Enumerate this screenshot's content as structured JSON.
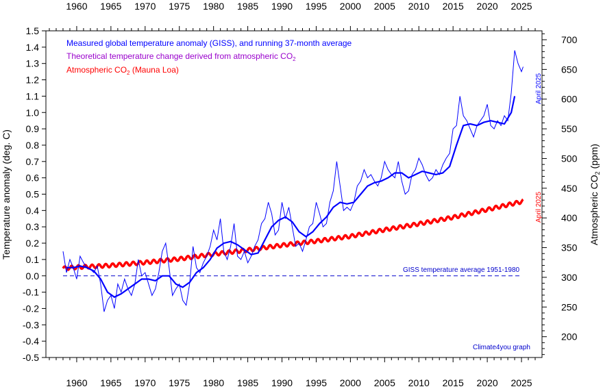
{
  "chart_data": {
    "type": "line",
    "xlabel": "",
    "ylabel": "Temperature anomaly (deg. C)",
    "ylabel_right": "Atmospheric CO",
    "ylabel_right_sub": "2",
    "ylabel_right_unit": " (ppm)",
    "xlim": [
      1955.5,
      2028.0
    ],
    "ylim": [
      -0.5,
      1.5
    ],
    "ylim_right": [
      165,
      715
    ],
    "x_ticks": [
      1960,
      1965,
      1970,
      1975,
      1980,
      1985,
      1990,
      1995,
      2000,
      2005,
      2010,
      2015,
      2020,
      2025
    ],
    "y_ticks": [
      "-0.5",
      "-0.4",
      "-0.3",
      "-0.2",
      "-0.1",
      "0.0",
      "0.1",
      "0.2",
      "0.3",
      "0.4",
      "0.5",
      "0.6",
      "0.7",
      "0.8",
      "0.9",
      "1.0",
      "1.1",
      "1.2",
      "1.3",
      "1.4",
      "1.5"
    ],
    "y_ticks_right": [
      200,
      250,
      300,
      350,
      400,
      450,
      500,
      550,
      600,
      650,
      700
    ],
    "legend": [
      {
        "text": "Measured global temperature anomaly (GISS), and running 37-month average",
        "sub": "",
        "color": "#0000ff"
      },
      {
        "text": "Theoretical temperature change derived from atmospheric CO",
        "sub": "2",
        "color": "#9900cc"
      },
      {
        "text": "Atmospheric CO",
        "sub": "2",
        "tail": " (Mauna Loa)",
        "color": "#ff0000"
      }
    ],
    "annotations": {
      "baseline": "GISS temperature average 1951-1980",
      "credit": "Climate4you graph",
      "temp_end": "April 2025",
      "co2_end": "April 2025"
    },
    "colors": {
      "temperature": "#0000ff",
      "co2": "#ff0000",
      "theoretical": "#9900cc",
      "axis": "#000000"
    },
    "series": [
      {
        "name": "Measured global temperature anomaly (GISS)",
        "x": [
          1958.0,
          1958.5,
          1959.0,
          1959.5,
          1960.0,
          1960.5,
          1961.0,
          1961.5,
          1962.0,
          1962.5,
          1963.0,
          1963.5,
          1964.0,
          1964.5,
          1965.0,
          1965.5,
          1966.0,
          1966.5,
          1967.0,
          1967.5,
          1968.0,
          1968.5,
          1969.0,
          1969.5,
          1970.0,
          1970.5,
          1971.0,
          1971.5,
          1972.0,
          1972.5,
          1973.0,
          1973.5,
          1974.0,
          1974.5,
          1975.0,
          1975.5,
          1976.0,
          1976.5,
          1977.0,
          1977.5,
          1978.0,
          1978.5,
          1979.0,
          1979.5,
          1980.0,
          1980.5,
          1981.0,
          1981.5,
          1982.0,
          1982.5,
          1983.0,
          1983.5,
          1984.0,
          1984.5,
          1985.0,
          1985.5,
          1986.0,
          1986.5,
          1987.0,
          1987.5,
          1988.0,
          1988.5,
          1989.0,
          1989.5,
          1990.0,
          1990.5,
          1991.0,
          1991.5,
          1992.0,
          1992.5,
          1993.0,
          1993.5,
          1994.0,
          1994.5,
          1995.0,
          1995.5,
          1996.0,
          1996.5,
          1997.0,
          1997.5,
          1998.0,
          1998.5,
          1999.0,
          1999.5,
          2000.0,
          2000.5,
          2001.0,
          2001.5,
          2002.0,
          2002.5,
          2003.0,
          2003.5,
          2004.0,
          2004.5,
          2005.0,
          2005.5,
          2006.0,
          2006.5,
          2007.0,
          2007.5,
          2008.0,
          2008.5,
          2009.0,
          2009.5,
          2010.0,
          2010.5,
          2011.0,
          2011.5,
          2012.0,
          2012.5,
          2013.0,
          2013.5,
          2014.0,
          2014.5,
          2015.0,
          2015.5,
          2016.0,
          2016.5,
          2017.0,
          2017.5,
          2018.0,
          2018.5,
          2019.0,
          2019.5,
          2020.0,
          2020.5,
          2021.0,
          2021.5,
          2022.0,
          2022.5,
          2023.0,
          2023.5,
          2024.0,
          2024.5,
          2025.0,
          2025.25
        ],
        "values": [
          0.15,
          0.02,
          0.1,
          0.05,
          -0.02,
          0.12,
          0.08,
          0.05,
          0.04,
          0.02,
          0.06,
          -0.05,
          -0.22,
          -0.15,
          -0.12,
          -0.2,
          -0.05,
          -0.1,
          -0.02,
          -0.08,
          -0.12,
          -0.05,
          0.1,
          0.0,
          0.02,
          -0.05,
          -0.12,
          -0.08,
          0.02,
          0.15,
          0.2,
          0.05,
          -0.12,
          -0.08,
          -0.05,
          -0.15,
          -0.18,
          -0.05,
          0.18,
          0.05,
          0.02,
          0.08,
          0.12,
          0.18,
          0.28,
          0.22,
          0.35,
          0.15,
          0.1,
          0.18,
          0.32,
          0.12,
          0.1,
          0.15,
          0.08,
          0.12,
          0.18,
          0.22,
          0.32,
          0.35,
          0.45,
          0.38,
          0.25,
          0.28,
          0.45,
          0.35,
          0.42,
          0.3,
          0.18,
          0.2,
          0.15,
          0.22,
          0.3,
          0.32,
          0.45,
          0.38,
          0.3,
          0.32,
          0.45,
          0.52,
          0.7,
          0.55,
          0.4,
          0.42,
          0.4,
          0.45,
          0.55,
          0.58,
          0.65,
          0.6,
          0.62,
          0.58,
          0.55,
          0.6,
          0.7,
          0.65,
          0.62,
          0.6,
          0.7,
          0.58,
          0.5,
          0.52,
          0.62,
          0.65,
          0.72,
          0.68,
          0.62,
          0.58,
          0.6,
          0.65,
          0.62,
          0.68,
          0.72,
          0.75,
          0.9,
          0.92,
          1.1,
          0.98,
          0.95,
          0.9,
          0.85,
          0.92,
          0.95,
          0.98,
          1.05,
          0.92,
          0.9,
          0.95,
          0.92,
          0.98,
          0.95,
          1.12,
          1.38,
          1.3,
          1.25,
          1.28
        ]
      },
      {
        "name": "Running 37-month average",
        "x": [
          1958.5,
          1959.5,
          1960.5,
          1961.5,
          1962.5,
          1963.5,
          1964.5,
          1965.5,
          1966.5,
          1967.5,
          1968.5,
          1969.5,
          1970.5,
          1971.5,
          1972.5,
          1973.5,
          1974.5,
          1975.5,
          1976.5,
          1977.5,
          1978.5,
          1979.5,
          1980.5,
          1981.5,
          1982.5,
          1983.5,
          1984.5,
          1985.5,
          1986.5,
          1987.5,
          1988.5,
          1989.5,
          1990.5,
          1991.5,
          1992.5,
          1993.5,
          1994.5,
          1995.5,
          1996.5,
          1997.5,
          1998.5,
          1999.5,
          2000.5,
          2001.5,
          2002.5,
          2003.5,
          2004.5,
          2005.5,
          2006.5,
          2007.5,
          2008.5,
          2009.5,
          2010.5,
          2011.5,
          2012.5,
          2013.5,
          2014.5,
          2015.5,
          2016.5,
          2017.5,
          2018.5,
          2019.5,
          2020.5,
          2021.5,
          2022.5,
          2023.5,
          2024.0
        ],
        "values": [
          0.05,
          0.05,
          0.06,
          0.05,
          0.03,
          -0.02,
          -0.1,
          -0.13,
          -0.11,
          -0.08,
          -0.05,
          -0.02,
          -0.02,
          -0.03,
          0.0,
          0.0,
          -0.05,
          -0.07,
          -0.04,
          0.02,
          0.05,
          0.1,
          0.17,
          0.2,
          0.21,
          0.19,
          0.16,
          0.13,
          0.14,
          0.22,
          0.3,
          0.34,
          0.36,
          0.33,
          0.27,
          0.24,
          0.27,
          0.32,
          0.36,
          0.42,
          0.45,
          0.44,
          0.45,
          0.5,
          0.55,
          0.57,
          0.58,
          0.6,
          0.63,
          0.63,
          0.6,
          0.62,
          0.64,
          0.63,
          0.62,
          0.63,
          0.67,
          0.8,
          0.92,
          0.93,
          0.92,
          0.94,
          0.95,
          0.94,
          0.93,
          1.0,
          1.1
        ]
      },
      {
        "name": "Atmospheric CO2 (Mauna Loa)",
        "axis": "right",
        "x": [
          1958.0,
          1960.0,
          1965.0,
          1970.0,
          1975.0,
          1980.0,
          1985.0,
          1990.0,
          1995.0,
          2000.0,
          2005.0,
          2010.0,
          2015.0,
          2020.0,
          2025.25
        ],
        "values": [
          315,
          317,
          320,
          325,
          331,
          339,
          346,
          354,
          361,
          369,
          380,
          390,
          401,
          414,
          428
        ]
      }
    ]
  }
}
